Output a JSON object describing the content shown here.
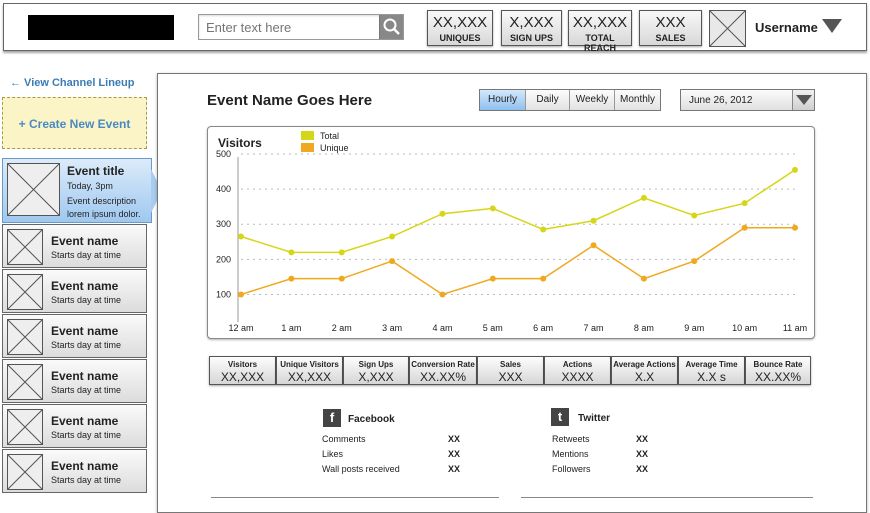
{
  "search": {
    "placeholder": "Enter text here"
  },
  "stats": [
    {
      "value": "XX,XXX",
      "label": "UNIQUES"
    },
    {
      "value": "X,XXX",
      "label": "SIGN UPS"
    },
    {
      "value": "XX,XXX",
      "label": "TOTAL REACH"
    },
    {
      "value": "XXX",
      "label": "SALES"
    }
  ],
  "user": {
    "name": "Username"
  },
  "sidebar": {
    "back_label": "← View Channel Lineup",
    "create_label": "+ Create New Event",
    "active_event": {
      "title": "Event title",
      "time": "Today, 3pm",
      "desc1": "Event description",
      "desc2": "lorem ipsum dolor."
    },
    "events": [
      {
        "name": "Event name",
        "time": "Starts day at time"
      },
      {
        "name": "Event name",
        "time": "Starts day at time"
      },
      {
        "name": "Event name",
        "time": "Starts day at time"
      },
      {
        "name": "Event name",
        "time": "Starts day at time"
      },
      {
        "name": "Event name",
        "time": "Starts day at time"
      },
      {
        "name": "Event name",
        "time": "Starts day at time"
      }
    ]
  },
  "main": {
    "title": "Event Name Goes Here",
    "periods": [
      "Hourly",
      "Daily",
      "Weekly",
      "Monthly"
    ],
    "selected_period": "Hourly",
    "date": "June 26, 2012"
  },
  "chart_data": {
    "type": "line",
    "title": "Visitors",
    "categories": [
      "12 am",
      "1 am",
      "2 am",
      "3 am",
      "4 am",
      "5 am",
      "6 am",
      "7 am",
      "8 am",
      "9 am",
      "10 am",
      "11 am"
    ],
    "series": [
      {
        "name": "Total",
        "color": "#d6d619",
        "values": [
          265,
          220,
          220,
          265,
          330,
          345,
          285,
          310,
          375,
          325,
          360,
          455
        ]
      },
      {
        "name": "Unique",
        "color": "#f0a81e",
        "values": [
          100,
          145,
          145,
          195,
          100,
          145,
          145,
          240,
          145,
          195,
          290,
          290
        ]
      }
    ],
    "yticks": [
      100,
      200,
      300,
      400,
      500
    ],
    "ylim": [
      50,
      520
    ],
    "grid": true,
    "legend": "top-left"
  },
  "metrics": [
    {
      "label": "Visitors",
      "value": "XX,XXX"
    },
    {
      "label": "Unique Visitors",
      "value": "XX,XXX"
    },
    {
      "label": "Sign Ups",
      "value": "X,XXX"
    },
    {
      "label": "Conversion Rate",
      "value": "XX.XX%"
    },
    {
      "label": "Sales",
      "value": "XXX"
    },
    {
      "label": "Actions",
      "value": "XXXX"
    },
    {
      "label": "Average  Actions",
      "value": "X.X"
    },
    {
      "label": "Average  Time",
      "value": "X.X s"
    },
    {
      "label": "Bounce Rate",
      "value": "XX.XX%"
    }
  ],
  "social": {
    "facebook": {
      "title": "Facebook",
      "rows": [
        {
          "label": "Comments",
          "value": "XX"
        },
        {
          "label": "Likes",
          "value": "XX"
        },
        {
          "label": "Wall posts received",
          "value": "XX"
        }
      ]
    },
    "twitter": {
      "title": "Twitter",
      "rows": [
        {
          "label": "Retweets",
          "value": "XX"
        },
        {
          "label": "Mentions",
          "value": "XX"
        },
        {
          "label": "Followers",
          "value": "XX"
        }
      ]
    }
  }
}
